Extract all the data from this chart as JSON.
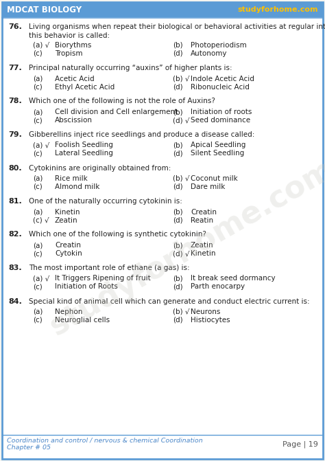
{
  "header_left": "MDCAT BIOLOGY",
  "header_right": "studyforhome.com",
  "header_bg": "#5b9bd5",
  "header_text_color": "#ffffff",
  "header_right_color": "#ffc000",
  "border_color": "#5b9bd5",
  "bg_color": "#f5f5f0",
  "inner_bg": "#ffffff",
  "watermark": "studyforhome.com",
  "footer_line1": "Coordination and control / nervous & chemical Coordination",
  "footer_line2": "Chapter # 05",
  "footer_page": "Page | 19",
  "footer_color": "#4a86c8",
  "text_color": "#222222",
  "questions": [
    {
      "num": "76.",
      "text": "Living organisms when repeat their biological or behavioral activities at regular intervals,\nthis behavior is called:",
      "two_line": true,
      "options": [
        {
          "label": "(a) √",
          "text": "Biorythms",
          "col": 0
        },
        {
          "label": "(b)",
          "text": "Photoperiodism",
          "col": 1
        },
        {
          "label": "(c)",
          "text": "Tropism",
          "col": 0
        },
        {
          "label": "(d)",
          "text": "Autonomy",
          "col": 1
        }
      ]
    },
    {
      "num": "77.",
      "text": "Principal naturally occurring “auxins” of higher plants is:",
      "two_line": false,
      "options": [
        {
          "label": "(a)",
          "text": "Acetic Acid",
          "col": 0
        },
        {
          "label": "(b) √",
          "text": "Indole Acetic Acid",
          "col": 1
        },
        {
          "label": "(c)",
          "text": "Ethyl Acetic Acid",
          "col": 0
        },
        {
          "label": "(d)",
          "text": "Ribonucleic Acid",
          "col": 1
        }
      ]
    },
    {
      "num": "78.",
      "text": "Which one of the following is not the role of Auxins?",
      "two_line": false,
      "options": [
        {
          "label": "(a)",
          "text": "Cell division and Cell enlargement",
          "col": 0
        },
        {
          "label": "(b)",
          "text": "Initiation of roots",
          "col": 1
        },
        {
          "label": "(c)",
          "text": "Abscission",
          "col": 0
        },
        {
          "label": "(d) √",
          "text": "Seed dominance",
          "col": 1
        }
      ]
    },
    {
      "num": "79.",
      "text": "Gibberellins inject rice seedlings and produce a disease called:",
      "two_line": false,
      "options": [
        {
          "label": "(a) √",
          "text": "Foolish Seedling",
          "col": 0
        },
        {
          "label": "(b)",
          "text": "Apical Seedling",
          "col": 1
        },
        {
          "label": "(c)",
          "text": "Lateral Seedling",
          "col": 0
        },
        {
          "label": "(d)",
          "text": "Silent Seedling",
          "col": 1
        }
      ]
    },
    {
      "num": "80.",
      "text": "Cytokinins are originally obtained from:",
      "two_line": false,
      "options": [
        {
          "label": "(a)",
          "text": "Rice milk",
          "col": 0
        },
        {
          "label": "(b) √",
          "text": "Coconut milk",
          "col": 1
        },
        {
          "label": "(c)",
          "text": "Almond milk",
          "col": 0
        },
        {
          "label": "(d)",
          "text": "Dare milk",
          "col": 1
        }
      ]
    },
    {
      "num": "81.",
      "text": "One of the naturally occurring cytokinin is:",
      "two_line": false,
      "options": [
        {
          "label": "(a)",
          "text": "Kinetin",
          "col": 0
        },
        {
          "label": "(b)",
          "text": "Creatin",
          "col": 1
        },
        {
          "label": "(c) √",
          "text": "Zeatin",
          "col": 0
        },
        {
          "label": "(d)",
          "text": "Reatin",
          "col": 1
        }
      ]
    },
    {
      "num": "82.",
      "text": "Which one of the following is synthetic cytokinin?",
      "two_line": false,
      "options": [
        {
          "label": "(a)",
          "text": "Creatin",
          "col": 0
        },
        {
          "label": "(b)",
          "text": "Zeatin",
          "col": 1
        },
        {
          "label": "(c)",
          "text": "Cytokin",
          "col": 0
        },
        {
          "label": "(d) √",
          "text": "Kinetin",
          "col": 1
        }
      ]
    },
    {
      "num": "83.",
      "text": "The most important role of ethane (a gas) is:",
      "two_line": false,
      "options": [
        {
          "label": "(a) √",
          "text": "It Triggers Ripening of fruit",
          "col": 0
        },
        {
          "label": "(b)",
          "text": "It break seed dormancy",
          "col": 1
        },
        {
          "label": "(c)",
          "text": "Initiation of Roots",
          "col": 0
        },
        {
          "label": "(d)",
          "text": "Parth enocarpy",
          "col": 1
        }
      ]
    },
    {
      "num": "84.",
      "text": "Special kind of animal cell which can generate and conduct electric current is:",
      "two_line": false,
      "options": [
        {
          "label": "(a)",
          "text": "Nephon",
          "col": 0
        },
        {
          "label": "(b) √",
          "text": "Neurons",
          "col": 1
        },
        {
          "label": "(c)",
          "text": "Neuroglial cells",
          "col": 0
        },
        {
          "label": "(d)",
          "text": "Histiocytes",
          "col": 1
        }
      ]
    }
  ]
}
